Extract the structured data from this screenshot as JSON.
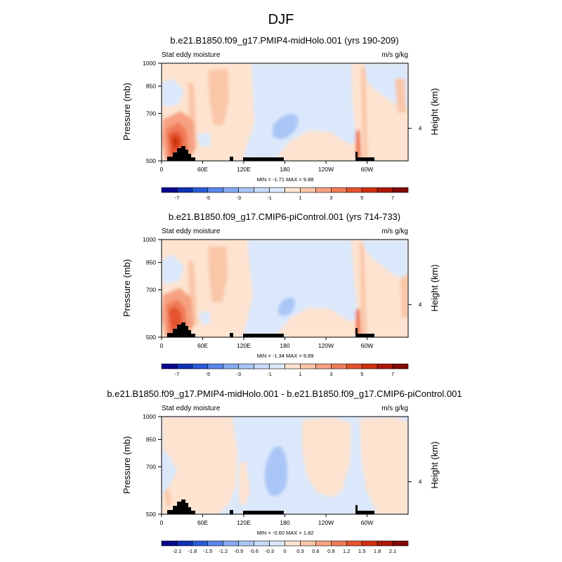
{
  "figure": {
    "title": "DJF"
  },
  "chart_data": [
    {
      "type": "heatmap",
      "title": "b.e21.B1850.f09_g17.PMIP4-midHolo.001 (yrs 190-209)",
      "left_label": "Stat eddy moisture",
      "right_label": "m/s g/kg",
      "ylabel": "Pressure (mb)",
      "ylabel_right": "Height (km)",
      "y_ticks": [
        "500",
        "700",
        "850",
        "1000"
      ],
      "y_tick_values": [
        500,
        700,
        850,
        1000
      ],
      "x_ticks": [
        "0",
        "60E",
        "120E",
        "180",
        "120W",
        "60W"
      ],
      "x_tick_values": [
        0,
        60,
        120,
        180,
        240,
        300
      ],
      "xlim": [
        0,
        360
      ],
      "right_ticks": [
        "4"
      ],
      "stats": "MIN =  -1.71  MAX =   9.88",
      "min": -1.71,
      "max": 9.88,
      "colorbar_levels": [
        -8,
        -7,
        -6,
        -5,
        -4,
        -3,
        -2,
        -1,
        0,
        1,
        2,
        3,
        4,
        5,
        6,
        7,
        8
      ],
      "colorbar_labels": [
        "-7",
        "-5",
        "-3",
        "-1",
        "1",
        "3",
        "5",
        "7"
      ]
    },
    {
      "type": "heatmap",
      "title": "b.e21.B1850.f09_g17.CMIP6-piControl.001 (yrs 714-733)",
      "left_label": "Stat eddy moisture",
      "right_label": "m/s g/kg",
      "ylabel": "Pressure (mb)",
      "ylabel_right": "Height (km)",
      "y_ticks": [
        "500",
        "700",
        "850",
        "1000"
      ],
      "y_tick_values": [
        500,
        700,
        850,
        1000
      ],
      "x_ticks": [
        "0",
        "60E",
        "120E",
        "180",
        "120W",
        "60W"
      ],
      "x_tick_values": [
        0,
        60,
        120,
        180,
        240,
        300
      ],
      "xlim": [
        0,
        360
      ],
      "right_ticks": [
        "4"
      ],
      "stats": "MIN =  -1.34  MAX =   9.89",
      "min": -1.34,
      "max": 9.89,
      "colorbar_levels": [
        -8,
        -7,
        -6,
        -5,
        -4,
        -3,
        -2,
        -1,
        0,
        1,
        2,
        3,
        4,
        5,
        6,
        7,
        8
      ],
      "colorbar_labels": [
        "-7",
        "-5",
        "-3",
        "-1",
        "1",
        "3",
        "5",
        "7"
      ]
    },
    {
      "type": "heatmap",
      "title": "b.e21.B1850.f09_g17.PMIP4-midHolo.001 - b.e21.B1850.f09_g17.CMIP6-piControl.001",
      "left_label": "Stat eddy moisture",
      "right_label": "m/s g/kg",
      "ylabel": "Pressure (mb)",
      "ylabel_right": "Height (km)",
      "y_ticks": [
        "500",
        "700",
        "850",
        "1000"
      ],
      "y_tick_values": [
        500,
        700,
        850,
        1000
      ],
      "x_ticks": [
        "0",
        "60E",
        "120E",
        "180",
        "120W",
        "60W"
      ],
      "x_tick_values": [
        0,
        60,
        120,
        180,
        240,
        300
      ],
      "xlim": [
        0,
        360
      ],
      "right_ticks": [
        "4"
      ],
      "stats": "MIN =  -0.60  MAX =   1.82",
      "min": -0.6,
      "max": 1.82,
      "colorbar_levels": [
        -2.4,
        -2.1,
        -1.8,
        -1.5,
        -1.2,
        -0.9,
        -0.6,
        -0.3,
        0,
        0.3,
        0.6,
        0.9,
        1.2,
        1.5,
        1.8,
        2.1,
        2.4
      ],
      "colorbar_labels": [
        "-2.1",
        "-1.8",
        "-1.5",
        "-1.2",
        "-0.9",
        "-0.6",
        "-0.3",
        "0",
        "0.3",
        "0.6",
        "0.9",
        "1.2",
        "1.5",
        "1.8",
        "2.1"
      ]
    }
  ],
  "colors": {
    "colormap": [
      "#08088c",
      "#1030b8",
      "#2a5ad8",
      "#5a86ec",
      "#86aaf2",
      "#aac6f6",
      "#c8dcfa",
      "#dbe8fb",
      "#fde3d0",
      "#fac6a8",
      "#f6a282",
      "#ef7c58",
      "#e4532e",
      "#cf3010",
      "#ac1808",
      "#820a02"
    ],
    "topography": "#000000",
    "frame": "#000000"
  }
}
